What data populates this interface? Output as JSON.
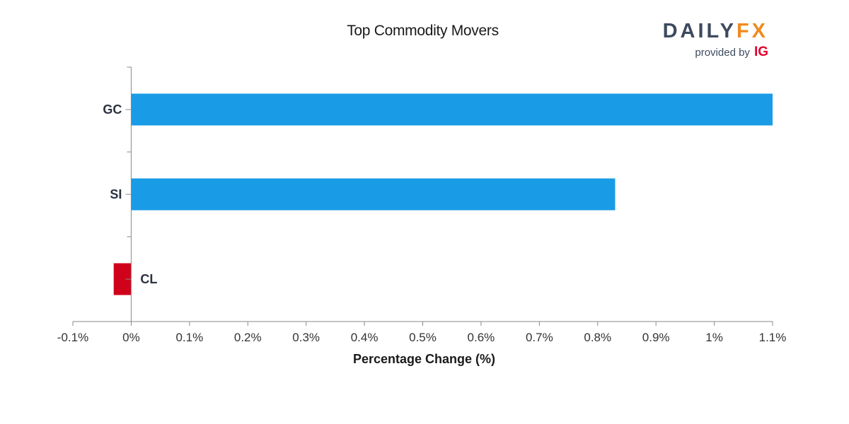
{
  "chart_data": {
    "type": "bar",
    "orientation": "horizontal",
    "title": "Top Commodity Movers",
    "xlabel": "Percentage Change (%)",
    "ylabel": "",
    "categories": [
      "GC",
      "SI",
      "CL"
    ],
    "values": [
      1.1,
      0.83,
      -0.03
    ],
    "xlim": [
      -0.1,
      1.1
    ],
    "xticks": [
      -0.1,
      0,
      0.1,
      0.2,
      0.3,
      0.4,
      0.5,
      0.6,
      0.7,
      0.8,
      0.9,
      1.0,
      1.1
    ],
    "xtick_labels": [
      "-0.1%",
      "0%",
      "0.1%",
      "0.2%",
      "0.3%",
      "0.4%",
      "0.5%",
      "0.6%",
      "0.7%",
      "0.8%",
      "0.9%",
      "1%",
      "1.1%"
    ],
    "grid": false,
    "colors": {
      "positive": "#1a9be6",
      "negative": "#d0021b"
    }
  },
  "logo": {
    "word_part1": "DAILY",
    "word_part2": "FX",
    "provided_by": "provided by",
    "brand": "IG"
  }
}
